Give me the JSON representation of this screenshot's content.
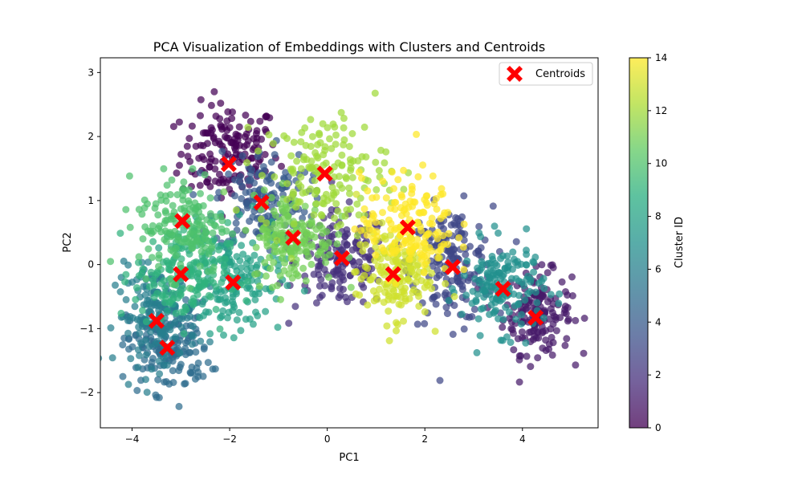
{
  "chart_data": {
    "type": "scatter",
    "title": "PCA Visualization of Embeddings with Clusters and Centroids",
    "xlabel": "PC1",
    "ylabel": "PC2",
    "xlim": [
      -4.65,
      5.55
    ],
    "ylim": [
      -2.55,
      3.23
    ],
    "xticks": [
      -4,
      -2,
      0,
      2,
      4
    ],
    "yticks": [
      -2,
      -1,
      0,
      1,
      2,
      3
    ],
    "grid": false,
    "legend": {
      "placement": "top-right",
      "entries": [
        "Centroids"
      ]
    },
    "colorbar": {
      "label": "Cluster ID",
      "range": [
        0,
        14
      ],
      "ticks": [
        0,
        2,
        4,
        6,
        8,
        10,
        12,
        14
      ],
      "colormap": "viridis"
    },
    "centroids": {
      "name": "Centroids",
      "color": "#ff0000",
      "marker": "X",
      "points": [
        {
          "x": -2.02,
          "y": 1.57
        },
        {
          "x": -1.35,
          "y": 0.97
        },
        {
          "x": -0.05,
          "y": 1.42
        },
        {
          "x": -2.97,
          "y": 0.68
        },
        {
          "x": -0.7,
          "y": 0.42
        },
        {
          "x": 0.3,
          "y": 0.1
        },
        {
          "x": 1.65,
          "y": 0.58
        },
        {
          "x": -3.0,
          "y": -0.15
        },
        {
          "x": -1.93,
          "y": -0.28
        },
        {
          "x": 1.35,
          "y": -0.15
        },
        {
          "x": 2.57,
          "y": -0.04
        },
        {
          "x": 3.6,
          "y": -0.38
        },
        {
          "x": 4.27,
          "y": -0.83
        },
        {
          "x": -3.5,
          "y": -0.88
        },
        {
          "x": -3.28,
          "y": -1.3
        }
      ]
    },
    "clusters": [
      {
        "cluster_id": 0,
        "cx": -2.0,
        "cy": 1.75,
        "sx": 0.5,
        "sy": 0.38
      },
      {
        "cluster_id": 1,
        "cx": 4.3,
        "cy": -0.75,
        "sx": 0.35,
        "sy": 0.32
      },
      {
        "cluster_id": 2,
        "cx": 0.3,
        "cy": 0.05,
        "sx": 0.48,
        "sy": 0.38
      },
      {
        "cluster_id": 3,
        "cx": 2.55,
        "cy": 0.0,
        "sx": 0.42,
        "sy": 0.45
      },
      {
        "cluster_id": 4,
        "cx": -1.35,
        "cy": 1.0,
        "sx": 0.48,
        "sy": 0.4
      },
      {
        "cluster_id": 5,
        "cx": -3.25,
        "cy": -1.3,
        "sx": 0.42,
        "sy": 0.35
      },
      {
        "cluster_id": 6,
        "cx": -3.5,
        "cy": -0.8,
        "sx": 0.42,
        "sy": 0.38
      },
      {
        "cluster_id": 7,
        "cx": 3.6,
        "cy": -0.35,
        "sx": 0.42,
        "sy": 0.35
      },
      {
        "cluster_id": 8,
        "cx": -1.95,
        "cy": -0.25,
        "sx": 0.5,
        "sy": 0.4
      },
      {
        "cluster_id": 9,
        "cx": -3.0,
        "cy": -0.15,
        "sx": 0.48,
        "sy": 0.4
      },
      {
        "cluster_id": 10,
        "cx": -2.95,
        "cy": 0.65,
        "sx": 0.45,
        "sy": 0.4
      },
      {
        "cluster_id": 11,
        "cx": -0.7,
        "cy": 0.4,
        "sx": 0.42,
        "sy": 0.35
      },
      {
        "cluster_id": 12,
        "cx": -0.05,
        "cy": 1.45,
        "sx": 0.65,
        "sy": 0.45
      },
      {
        "cluster_id": 13,
        "cx": 1.35,
        "cy": -0.15,
        "sx": 0.38,
        "sy": 0.35
      },
      {
        "cluster_id": 14,
        "cx": 1.65,
        "cy": 0.6,
        "sx": 0.48,
        "sy": 0.4
      }
    ]
  }
}
